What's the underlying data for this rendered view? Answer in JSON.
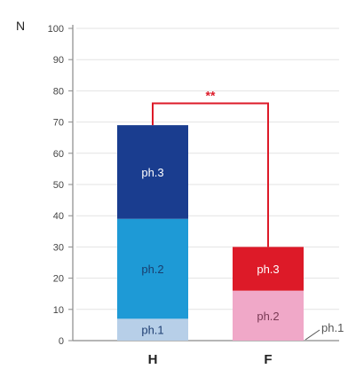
{
  "chart_data": {
    "type": "bar",
    "stacked": true,
    "ylabel": "N",
    "ylim": [
      0,
      100
    ],
    "yticks": [
      0,
      10,
      20,
      30,
      40,
      50,
      60,
      70,
      80,
      90,
      100
    ],
    "grid": true,
    "categories": [
      "H",
      "F"
    ],
    "bars": [
      {
        "category": "H",
        "segments": [
          {
            "label": "ph.1",
            "value": 7,
            "color": "#b7cfe8",
            "text_color": "#1f3f73"
          },
          {
            "label": "ph.2",
            "value": 32,
            "color": "#1e9ad6",
            "text_color": "#1a3e6e"
          },
          {
            "label": "ph.3",
            "value": 30,
            "color": "#1a3d8f",
            "text_color": "#ffffff"
          }
        ]
      },
      {
        "category": "F",
        "segments": [
          {
            "label": "ph.1",
            "value": 0,
            "color": "#f3b3d1",
            "text_color": "#555555"
          },
          {
            "label": "ph.2",
            "value": 16,
            "color": "#f0a8c8",
            "text_color": "#7a3a55"
          },
          {
            "label": "ph.3",
            "value": 14,
            "color": "#dd1a28",
            "text_color": "#ffffff"
          }
        ]
      }
    ],
    "significance": {
      "label": "**",
      "between": [
        "H",
        "F"
      ],
      "level": 76,
      "color": "#dd1a28"
    }
  }
}
